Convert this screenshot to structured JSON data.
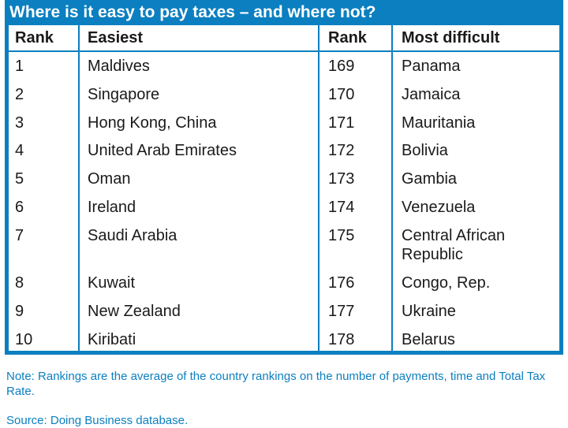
{
  "title": "Where is it easy to pay taxes – and where not?",
  "headers": {
    "rank1": "Rank",
    "easiest": "Easiest",
    "rank2": "Rank",
    "most_difficult": "Most difficult"
  },
  "rows": [
    {
      "rank_easy": "1",
      "easy": "Maldives",
      "rank_hard": "169",
      "hard": "Panama"
    },
    {
      "rank_easy": "2",
      "easy": "Singapore",
      "rank_hard": "170",
      "hard": "Jamaica"
    },
    {
      "rank_easy": "3",
      "easy": "Hong Kong, China",
      "rank_hard": "171",
      "hard": "Mauritania"
    },
    {
      "rank_easy": "4",
      "easy": "United Arab Emirates",
      "rank_hard": "172",
      "hard": "Bolivia"
    },
    {
      "rank_easy": "5",
      "easy": "Oman",
      "rank_hard": "173",
      "hard": "Gambia"
    },
    {
      "rank_easy": "6",
      "easy": "Ireland",
      "rank_hard": "174",
      "hard": "Venezuela"
    },
    {
      "rank_easy": "7",
      "easy": "Saudi Arabia",
      "rank_hard": "175",
      "hard": "Central African",
      "hard_line2": "Republic"
    },
    {
      "rank_easy": "8",
      "easy": "Kuwait",
      "rank_hard": "176",
      "hard": "Congo, Rep."
    },
    {
      "rank_easy": "9",
      "easy": "New Zealand",
      "rank_hard": "177",
      "hard": "Ukraine"
    },
    {
      "rank_easy": "10",
      "easy": "Kiribati",
      "rank_hard": "178",
      "hard": "Belarus"
    }
  ],
  "note": "Note: Rankings are the average of the country rankings on the number of payments, time and Total Tax Rate.",
  "source": "Source: Doing Business database."
}
